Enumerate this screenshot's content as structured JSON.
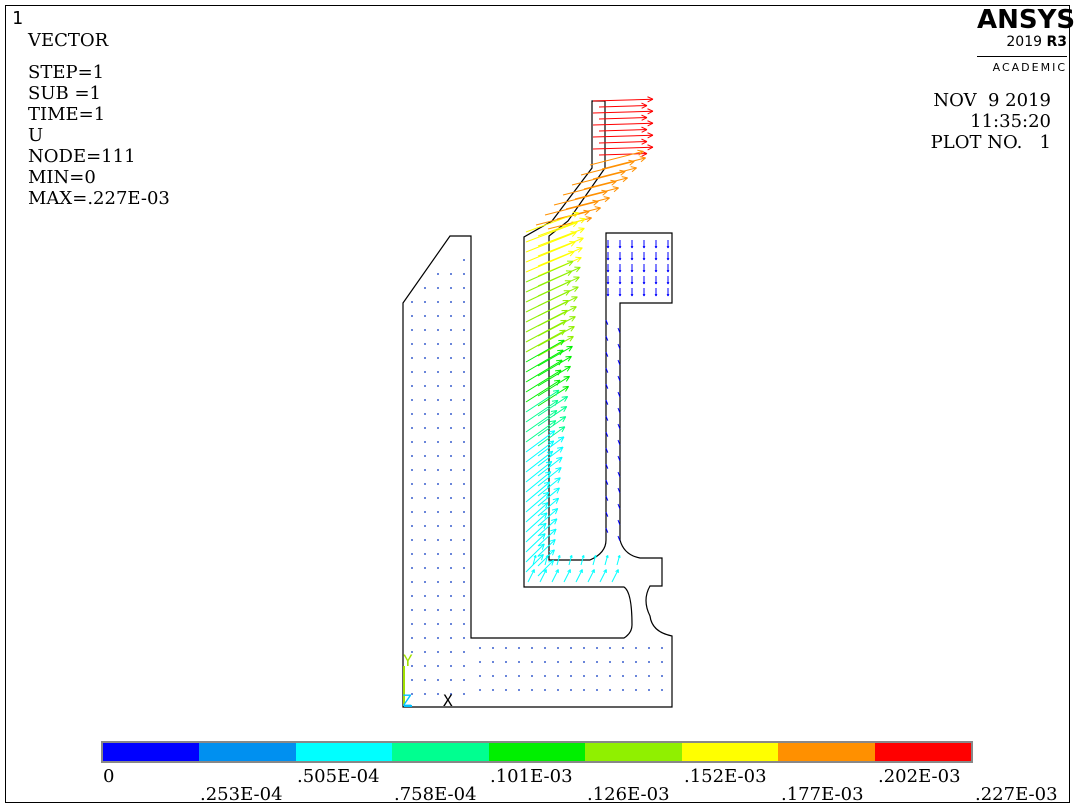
{
  "window_number": "1",
  "header": {
    "title": "VECTOR",
    "lines": [
      "STEP=1",
      "SUB =1",
      "TIME=1",
      "U",
      "NODE=111",
      "MIN=0",
      "MAX=.227E-03"
    ]
  },
  "logo": {
    "brand": "ANSYS",
    "version": "2019",
    "release": "R3",
    "edition": "ACADEMIC"
  },
  "date_info": {
    "date": "NOV  9 2019",
    "time": "11:35:20",
    "plot_no": "PLOT NO.   1"
  },
  "triad": {
    "x_label": "X",
    "y_label": "Y",
    "z_label": "Z"
  },
  "legend": {
    "colors": [
      "#0000ff",
      "#0090f0",
      "#00ffff",
      "#00ff90",
      "#00f000",
      "#90f000",
      "#ffff00",
      "#ff9000",
      "#ff0000"
    ],
    "upper_labels": [
      "0",
      ".505E-04",
      ".101E-03",
      ".152E-03",
      ".202E-03"
    ],
    "lower_labels": [
      ".253E-04",
      ".758E-04",
      ".126E-03",
      ".177E-03",
      ".227E-03"
    ]
  }
}
